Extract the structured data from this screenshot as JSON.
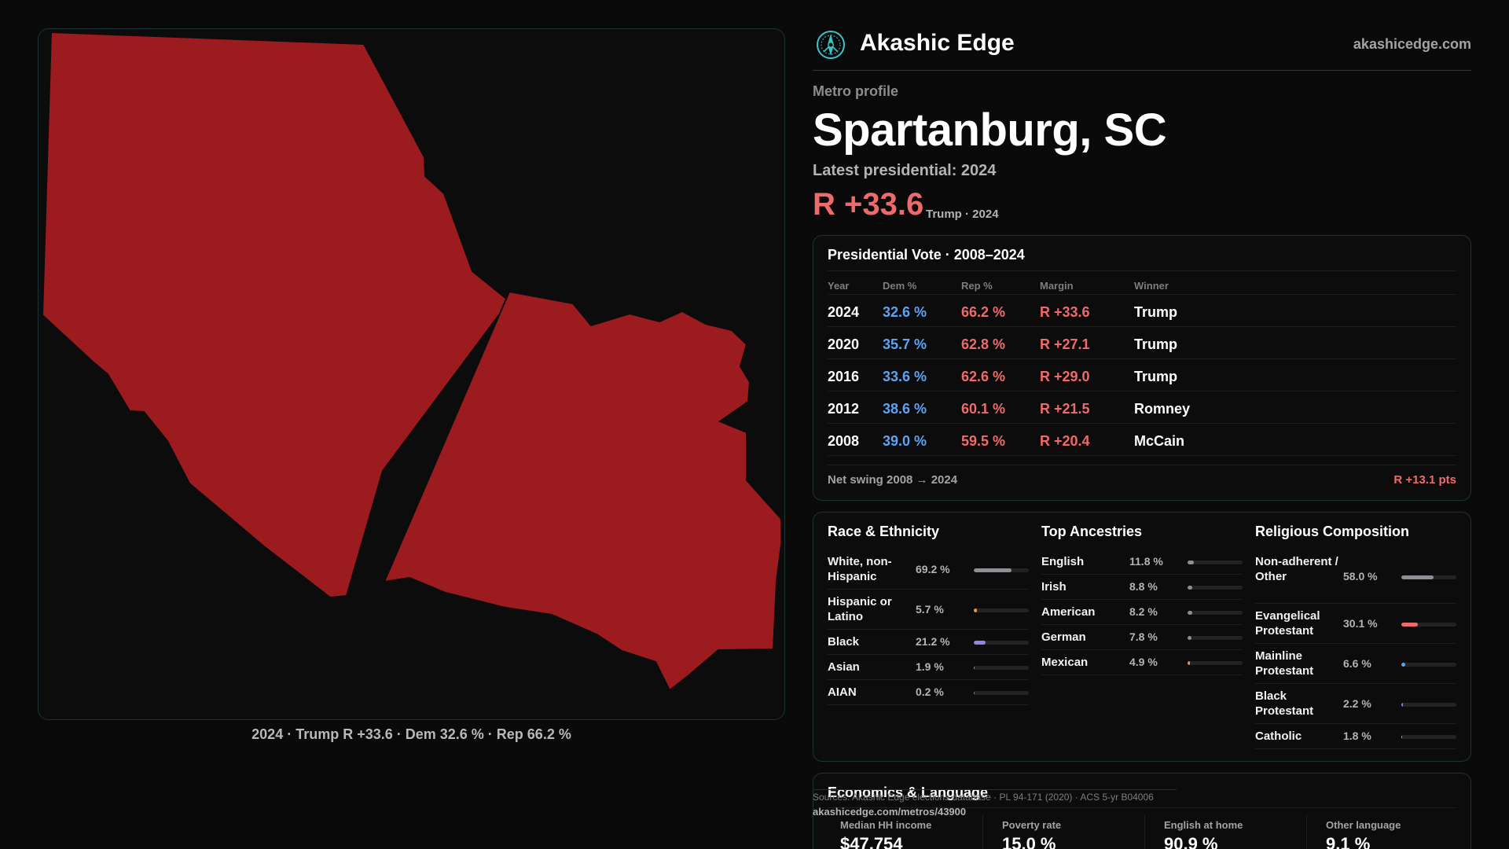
{
  "map": {
    "caption": "2024 · Trump R +33.6 · Dem 32.6 % · Rep 66.2 %",
    "fill_color": "#9c1b1f"
  },
  "brand": {
    "name": "Akashic Edge",
    "url": "akashicedge.com",
    "logo_icon": "compass-icon"
  },
  "profile": {
    "eyebrow": "Metro profile",
    "title": "Spartanburg, SC",
    "latest": "Latest presidential: 2024",
    "margin": "R +33.6",
    "margin_sub": "Trump · 2024"
  },
  "vote_table": {
    "title": "Presidential Vote · 2008–2024",
    "headers": {
      "year": "Year",
      "dem": "Dem %",
      "rep": "Rep %",
      "margin": "Margin",
      "winner": "Winner"
    },
    "rows": [
      {
        "year": "2024",
        "dem": "32.6 %",
        "rep": "66.2 %",
        "margin": "R +33.6",
        "winner": "Trump"
      },
      {
        "year": "2020",
        "dem": "35.7 %",
        "rep": "62.8 %",
        "margin": "R +27.1",
        "winner": "Trump"
      },
      {
        "year": "2016",
        "dem": "33.6 %",
        "rep": "62.6 %",
        "margin": "R +29.0",
        "winner": "Trump"
      },
      {
        "year": "2012",
        "dem": "38.6 %",
        "rep": "60.1 %",
        "margin": "R +21.5",
        "winner": "Romney"
      },
      {
        "year": "2008",
        "dem": "39.0 %",
        "rep": "59.5 %",
        "margin": "R +20.4",
        "winner": "McCain"
      }
    ],
    "swing_label": "Net swing 2008 → 2024",
    "swing_value": "R +13.1 pts"
  },
  "race": {
    "title": "Race & Ethnicity",
    "items": [
      {
        "label": "White, non-Hispanic",
        "value": "69.2 %",
        "pct": 69.2,
        "color": "#8e8e96"
      },
      {
        "label": "Hispanic or Latino",
        "value": "5.7 %",
        "pct": 5.7,
        "color": "#e0a13a"
      },
      {
        "label": "Black",
        "value": "21.2 %",
        "pct": 21.2,
        "color": "#9a7fe6"
      },
      {
        "label": "Asian",
        "value": "1.9 %",
        "pct": 1.9,
        "color": "#3cc3b0"
      },
      {
        "label": "AIAN",
        "value": "0.2 %",
        "pct": 0.2,
        "color": "#c96b4a"
      }
    ]
  },
  "ancestry": {
    "title": "Top Ancestries",
    "items": [
      {
        "label": "English",
        "value": "11.8 %",
        "pct": 11.8,
        "color": "#8e8e96"
      },
      {
        "label": "Irish",
        "value": "8.8 %",
        "pct": 8.8,
        "color": "#8e8e96"
      },
      {
        "label": "American",
        "value": "8.2 %",
        "pct": 8.2,
        "color": "#8e8e96"
      },
      {
        "label": "German",
        "value": "7.8 %",
        "pct": 7.8,
        "color": "#8e8e96"
      },
      {
        "label": "Mexican",
        "value": "4.9 %",
        "pct": 4.9,
        "color": "#e0a13a"
      }
    ]
  },
  "religion": {
    "title": "Religious Composition",
    "items": [
      {
        "label": "Non-adherent / Other",
        "value": "58.0 %",
        "pct": 58.0,
        "color": "#8e8e96"
      },
      {
        "label": "Evangelical Protestant",
        "value": "30.1 %",
        "pct": 30.1,
        "color": "#ef6b6b"
      },
      {
        "label": "Mainline Protestant",
        "value": "6.6 %",
        "pct": 6.6,
        "color": "#5ea3f3"
      },
      {
        "label": "Black Protestant",
        "value": "2.2 %",
        "pct": 2.2,
        "color": "#9a7fe6"
      },
      {
        "label": "Catholic",
        "value": "1.8 %",
        "pct": 1.8,
        "color": "#e0a13a"
      }
    ]
  },
  "economics": {
    "title": "Economics & Language",
    "items": [
      {
        "label": "Median HH income",
        "value": "$47,754"
      },
      {
        "label": "Poverty rate",
        "value": "15.0 %"
      },
      {
        "label": "English at home",
        "value": "90.9 %"
      },
      {
        "label": "Other language",
        "value": "9.1 %"
      }
    ]
  },
  "footer": {
    "sources": "Sources: Akashic Edge elections database · PL 94-171 (2020) · ACS 5-yr B04006",
    "url": "akashicedge.com/metros/43900"
  }
}
